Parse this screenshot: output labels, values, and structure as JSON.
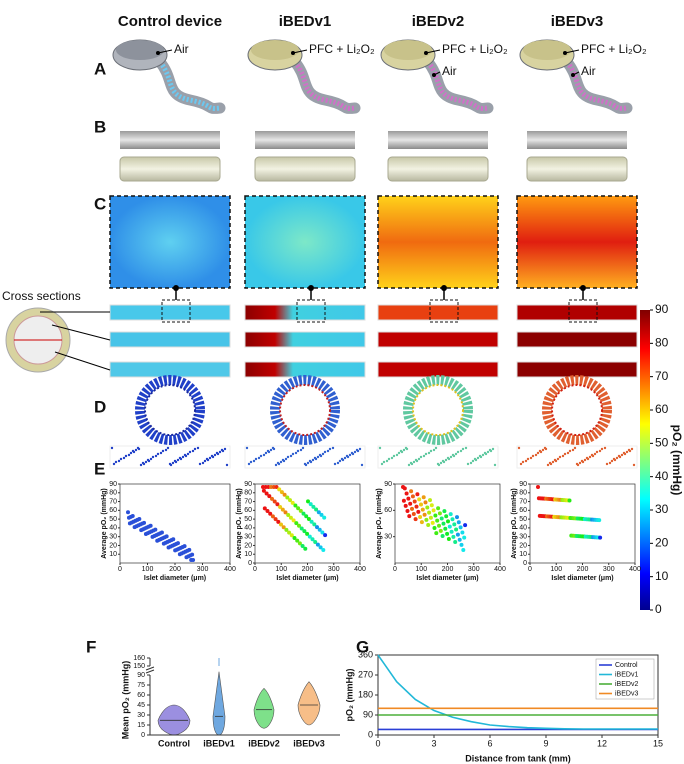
{
  "columns": [
    "Control device",
    "iBEDv1",
    "iBEDv2",
    "iBEDv3"
  ],
  "panel_letters": [
    "A",
    "B",
    "C",
    "D",
    "E",
    "F",
    "G"
  ],
  "A": {
    "labels": [
      [
        "Air"
      ],
      [
        "PFC + Li₂O₂"
      ],
      [
        "PFC + Li₂O₂",
        "Air"
      ],
      [
        "PFC + Li₂O₂",
        "Air"
      ]
    ]
  },
  "cross_sections": "Cross sections",
  "colorbar": {
    "label": "pO₂ (mmHg)",
    "ticks": [
      0,
      10,
      20,
      30,
      40,
      50,
      60,
      70,
      80,
      90
    ],
    "lim": [
      0,
      90
    ]
  },
  "E": {
    "y_label": "Average pO₂ (mmHg)",
    "x_label": "Islet diameter (μm)",
    "plots": [
      {
        "xlim": [
          0,
          400
        ],
        "xticks": [
          0,
          100,
          200,
          300,
          400
        ],
        "ylim": [
          0,
          90
        ],
        "yticks": [
          10,
          20,
          30,
          40,
          50,
          60,
          70,
          80,
          90
        ]
      },
      {
        "xlim": [
          0,
          400
        ],
        "xticks": [
          0,
          100,
          200,
          300,
          400
        ],
        "ylim": [
          0,
          90
        ],
        "yticks": [
          0,
          10,
          20,
          30,
          40,
          50,
          60,
          70,
          80,
          90
        ]
      },
      {
        "xlim": [
          0,
          400
        ],
        "xticks": [
          0,
          100,
          200,
          300,
          400
        ],
        "ylim": [
          0,
          90
        ],
        "yticks": [
          30,
          60,
          90
        ]
      },
      {
        "xlim": [
          0,
          400
        ],
        "xticks": [
          0,
          100,
          200,
          300,
          400
        ],
        "ylim": [
          0,
          90
        ],
        "yticks": [
          0,
          10,
          20,
          30,
          40,
          50,
          60,
          70,
          80,
          90
        ]
      }
    ]
  },
  "F": {
    "y_label": "Mean pO₂ (mmHg)",
    "categories": [
      "Control",
      "iBEDv1",
      "iBEDv2",
      "iBEDv3"
    ],
    "yticks": [
      0,
      15,
      30,
      45,
      60,
      75,
      90,
      150,
      160
    ]
  },
  "chart_data": [
    {
      "type": "line",
      "x_label": "Distance from tank (mm)",
      "y_label": "pO₂ (mmHg)",
      "x": [
        0,
        1,
        2,
        3,
        4,
        5,
        6,
        7,
        8,
        9,
        10,
        11,
        12,
        13,
        14,
        15
      ],
      "xlim": [
        0,
        15
      ],
      "xticks": [
        0,
        3,
        6,
        9,
        12,
        15
      ],
      "ylim": [
        0,
        360
      ],
      "yticks": [
        0,
        90,
        180,
        270,
        360
      ],
      "legend": "upper right",
      "series": [
        {
          "name": "Control",
          "color": "#2b3fd6",
          "values": [
            25,
            25,
            25,
            25,
            25,
            25,
            25,
            25,
            25,
            25,
            25,
            25,
            25,
            25,
            25,
            25
          ]
        },
        {
          "name": "iBEDv1",
          "color": "#22b8d8",
          "values": [
            360,
            240,
            160,
            110,
            80,
            60,
            45,
            38,
            33,
            30,
            28,
            27,
            27,
            27,
            27,
            27
          ]
        },
        {
          "name": "iBEDv2",
          "color": "#4caf3a",
          "values": [
            90,
            90,
            90,
            90,
            90,
            90,
            90,
            90,
            90,
            90,
            90,
            90,
            90,
            90,
            90,
            90
          ]
        },
        {
          "name": "iBEDv3",
          "color": "#f08a24",
          "values": [
            120,
            120,
            120,
            120,
            120,
            120,
            120,
            120,
            120,
            120,
            120,
            120,
            120,
            120,
            120,
            120
          ]
        }
      ]
    }
  ]
}
